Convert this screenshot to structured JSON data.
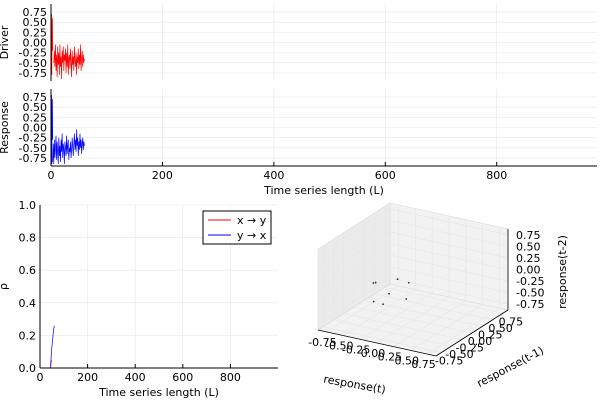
{
  "chart_data": [
    {
      "id": "driver",
      "type": "line",
      "xlabel": "",
      "ylabel": "Driver",
      "xlim": [
        0,
        980
      ],
      "ylim": [
        -0.95,
        0.95
      ],
      "yticks": [
        0.75,
        0.5,
        0.25,
        0.0,
        -0.25,
        -0.5,
        -0.75
      ],
      "ytick_labels": [
        "0.75",
        "0.50",
        "0.25",
        "0.00",
        "-0.25",
        "-0.50",
        "-0.75"
      ],
      "grid": true,
      "color": "#ff0000",
      "series": [
        {
          "x": [
            0,
            0.5,
            1,
            1.5,
            2,
            2.5,
            3
          ],
          "y": [
            0.9,
            -0.5,
            0.7,
            -0.8,
            0.3,
            0.6,
            -0.2
          ]
        },
        {
          "x": [
            5,
            6,
            7,
            8,
            9,
            10,
            11,
            12,
            13,
            14,
            15,
            16,
            17,
            18,
            19,
            20,
            21,
            22,
            23,
            24,
            25,
            26,
            27,
            28,
            29,
            30,
            31,
            32,
            33,
            34,
            35,
            36,
            37,
            38,
            39,
            40,
            41,
            42,
            43,
            44,
            45,
            46,
            47,
            48,
            49,
            50,
            51,
            52,
            53,
            54,
            55,
            56,
            57,
            58,
            59,
            60
          ],
          "y": [
            -0.5,
            -0.2,
            -0.6,
            -0.05,
            -0.7,
            -0.3,
            -0.85,
            -0.1,
            -0.55,
            -0.25,
            -0.8,
            -0.05,
            -0.6,
            -0.35,
            -0.9,
            -0.2,
            -0.5,
            -0.1,
            -0.7,
            -0.3,
            -0.45,
            -0.15,
            -0.75,
            -0.25,
            -0.6,
            -0.05,
            -0.8,
            -0.4,
            -0.3,
            -0.65,
            -0.15,
            -0.5,
            -0.85,
            -0.2,
            -0.55,
            -0.35,
            -0.7,
            -0.1,
            -0.45,
            -0.6,
            -0.25,
            -0.8,
            -0.35,
            -0.5,
            -0.15,
            -0.65,
            -0.3,
            -0.55,
            -0.05,
            -0.7,
            -0.4,
            -0.2,
            -0.6,
            -0.3,
            -0.5,
            -0.4
          ]
        }
      ]
    },
    {
      "id": "response",
      "type": "line",
      "xlabel": "Time series length (L)",
      "ylabel": "Response",
      "xlim": [
        0,
        980
      ],
      "ylim": [
        -0.95,
        0.95
      ],
      "xticks": [
        0,
        200,
        400,
        600,
        800
      ],
      "xtick_labels": [
        "0",
        "200",
        "400",
        "600",
        "800"
      ],
      "yticks": [
        0.75,
        0.5,
        0.25,
        0.0,
        -0.25,
        -0.5,
        -0.75
      ],
      "ytick_labels": [
        "0.75",
        "0.50",
        "0.25",
        "0.00",
        "-0.25",
        "-0.50",
        "-0.75"
      ],
      "grid": true,
      "color": "#0000ff",
      "series": [
        {
          "x": [
            0,
            0.5,
            1,
            1.5,
            2,
            2.5,
            3
          ],
          "y": [
            0.95,
            -0.6,
            0.8,
            -0.9,
            0.4,
            0.7,
            -0.3
          ]
        },
        {
          "x": [
            3,
            4,
            5,
            6,
            7,
            8,
            9,
            10,
            11,
            12,
            13,
            14,
            15,
            16,
            17,
            18,
            19,
            20,
            21,
            22,
            23,
            24,
            25,
            26,
            27,
            28,
            29,
            30,
            31,
            32,
            33,
            34,
            35,
            36,
            37,
            38,
            39,
            40,
            41,
            42,
            43,
            44,
            45,
            46,
            47,
            48,
            49,
            50,
            51,
            52,
            53,
            54,
            55,
            56,
            57,
            58,
            59,
            60
          ],
          "y": [
            -0.85,
            -0.4,
            -0.9,
            -0.3,
            -0.75,
            -0.5,
            -0.2,
            -0.8,
            -0.35,
            -0.65,
            -0.9,
            -0.25,
            -0.7,
            -0.45,
            -0.85,
            -0.3,
            -0.6,
            -0.15,
            -0.75,
            -0.4,
            -0.55,
            -0.9,
            -0.35,
            -0.5,
            -0.7,
            -0.2,
            -0.65,
            -0.45,
            -0.3,
            -0.8,
            -0.5,
            -0.6,
            -0.35,
            -0.75,
            -0.55,
            -0.25,
            -0.5,
            -0.7,
            -0.4,
            -0.15,
            -0.55,
            -0.3,
            -0.6,
            -0.05,
            -0.45,
            -0.25,
            -0.7,
            -0.35,
            -0.55,
            -0.15,
            -0.5,
            -0.3,
            -0.65,
            -0.4,
            -0.25,
            -0.55,
            -0.35,
            -0.45
          ]
        }
      ]
    },
    {
      "id": "rho",
      "type": "line",
      "xlabel": "Time series length (L)",
      "ylabel": "ρ",
      "xlim": [
        0,
        1000
      ],
      "ylim": [
        0,
        1.0
      ],
      "xticks": [
        0,
        200,
        400,
        600,
        800
      ],
      "xtick_labels": [
        "0",
        "200",
        "400",
        "600",
        "800"
      ],
      "yticks": [
        0.0,
        0.2,
        0.4,
        0.6,
        0.8,
        1.0
      ],
      "ytick_labels": [
        "0.0",
        "0.2",
        "0.4",
        "0.6",
        "0.8",
        "1.0"
      ],
      "grid": true,
      "legend_position": "top-right",
      "series": [
        {
          "name": "x → y",
          "color": "#ff0000",
          "x": [
            44,
            46,
            48
          ],
          "y": [
            0.0,
            0.02,
            0.05
          ]
        },
        {
          "name": "y → x",
          "color": "#0000ff",
          "x": [
            44,
            46,
            48,
            50,
            52,
            54,
            56,
            58,
            60
          ],
          "y": [
            0.0,
            0.05,
            0.09,
            0.13,
            0.16,
            0.19,
            0.22,
            0.24,
            0.26
          ]
        }
      ]
    },
    {
      "id": "embedding3d",
      "type": "scatter",
      "xlabel": "response(t)",
      "ylabel": "response(t-1)",
      "zlabel": "response(t-2)",
      "xticks": [
        "-0.75",
        "-0.50",
        "-0.25",
        "0.00",
        "0.25",
        "0.50",
        "0.75"
      ],
      "yticks": [
        "-0.75",
        "-0.50",
        "-0.25",
        "0.00",
        "0.25",
        "0.50",
        "0.75"
      ],
      "zticks": [
        "0.75",
        "0.50",
        "0.25",
        "0.00",
        "-0.25",
        "-0.50",
        "-0.75"
      ],
      "points": [
        {
          "x": -0.55,
          "y": -0.2,
          "z": -0.15
        },
        {
          "x": -0.45,
          "y": -0.3,
          "z": -0.05
        },
        {
          "x": -0.2,
          "y": -0.1,
          "z": 0.0
        },
        {
          "x": -0.1,
          "y": -0.5,
          "z": -0.1
        },
        {
          "x": 0.05,
          "y": -0.2,
          "z": 0.05
        },
        {
          "x": -0.3,
          "y": -0.6,
          "z": -0.3
        },
        {
          "x": -0.05,
          "y": -0.75,
          "z": -0.2
        },
        {
          "x": 0.1,
          "y": -0.35,
          "z": -0.25
        }
      ]
    }
  ]
}
